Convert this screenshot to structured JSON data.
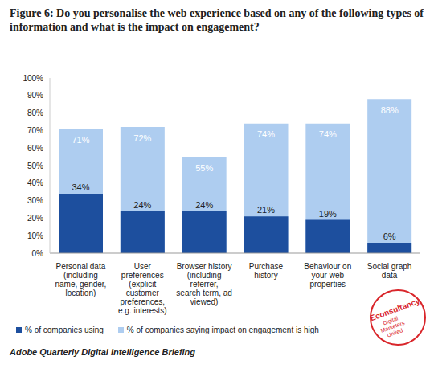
{
  "chart_data": {
    "type": "bar",
    "title": "Figure 6: Do you personalise the web experience based on any of the following types of information and what is the impact on engagement?",
    "categories": [
      "Personal data (including name, gender, location)",
      "User preferences (explicit customer preferences, e.g. interests)",
      "Browser history (including referrer, search term, ad viewed)",
      "Purchase history",
      "Behaviour on your web properties",
      "Social graph data"
    ],
    "series": [
      {
        "name": "% of companies using",
        "color": "#1d4f9e",
        "values": [
          34,
          24,
          24,
          21,
          19,
          6
        ],
        "value_labels": [
          "34%",
          "24%",
          "24%",
          "21%",
          "19%",
          "6%"
        ]
      },
      {
        "name": "% of companies saying impact on engagement is high",
        "color": "#aecdf0",
        "values": [
          71,
          72,
          55,
          74,
          74,
          88
        ],
        "value_labels": [
          "71%",
          "72%",
          "55%",
          "74%",
          "74%",
          "88%"
        ]
      }
    ],
    "ylim": [
      0,
      100
    ],
    "yticks": [
      {
        "value": 0,
        "label": "0%"
      },
      {
        "value": 10,
        "label": "10%"
      },
      {
        "value": 20,
        "label": "20%"
      },
      {
        "value": 30,
        "label": "30%"
      },
      {
        "value": 40,
        "label": "40%"
      },
      {
        "value": 50,
        "label": "50%"
      },
      {
        "value": 60,
        "label": "60%"
      },
      {
        "value": 70,
        "label": "70%"
      },
      {
        "value": 80,
        "label": "80%"
      },
      {
        "value": 90,
        "label": "90%"
      },
      {
        "value": 100,
        "label": "100%"
      }
    ],
    "grid": false,
    "legend": "bottom",
    "data_labels": true,
    "source": "Adobe Quarterly Digital Intelligence Briefing",
    "logo_text": [
      "Econsultancy",
      "Digital",
      "Marketers",
      "United"
    ]
  }
}
